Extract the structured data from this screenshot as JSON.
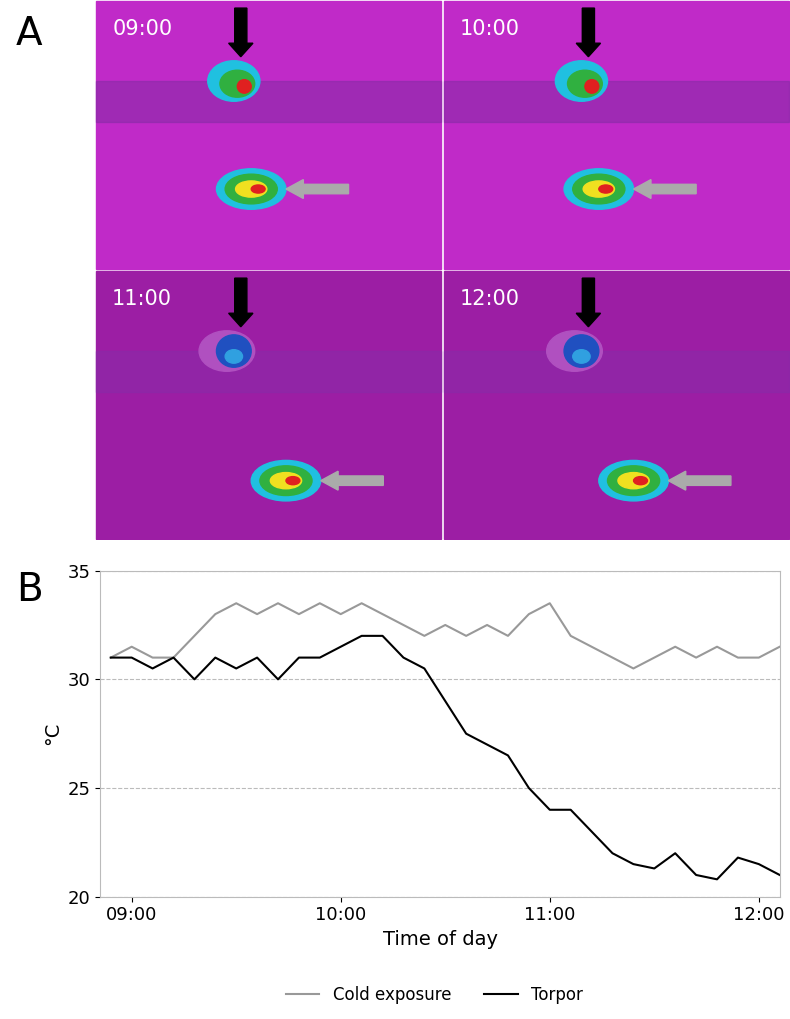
{
  "panel_labels": [
    "A",
    "B"
  ],
  "thermal_images": {
    "times": [
      "09:00",
      "10:00",
      "11:00",
      "12:00"
    ]
  },
  "chart_data": {
    "type": "line",
    "x_label": "Time of day",
    "y_label": "°C",
    "x": [
      8.9,
      9.0,
      9.1,
      9.2,
      9.3,
      9.4,
      9.5,
      9.6,
      9.7,
      9.8,
      9.9,
      10.0,
      10.1,
      10.2,
      10.3,
      10.4,
      10.5,
      10.6,
      10.7,
      10.8,
      10.9,
      11.0,
      11.1,
      11.2,
      11.3,
      11.4,
      11.5,
      11.6,
      11.7,
      11.8,
      11.9,
      12.0,
      12.1
    ],
    "series": [
      {
        "name": "Cold exposure",
        "color": "#999999",
        "values": [
          31,
          31.5,
          31,
          31,
          32,
          33,
          33.5,
          33,
          33.5,
          33,
          33.5,
          33,
          33.5,
          33,
          32.5,
          32,
          32.5,
          32,
          32.5,
          32,
          33,
          33.5,
          32,
          31.5,
          31,
          30.5,
          31,
          31.5,
          31,
          31.5,
          31,
          31,
          31.5
        ]
      },
      {
        "name": "Torpor",
        "color": "#000000",
        "values": [
          31,
          31,
          30.5,
          31,
          30,
          31,
          30.5,
          31,
          30,
          31,
          31,
          31.5,
          32,
          32,
          31,
          30.5,
          29,
          27.5,
          27,
          26.5,
          25,
          24,
          24,
          23,
          22,
          21.5,
          21.3,
          22,
          21,
          20.8,
          21.8,
          21.5,
          21
        ]
      }
    ],
    "xlim": [
      8.85,
      12.1
    ],
    "xticks": [
      {
        "value": 9,
        "label": "09:00"
      },
      {
        "value": 10,
        "label": "10:00"
      },
      {
        "value": 11,
        "label": "11:00"
      },
      {
        "value": 12,
        "label": "12:00"
      }
    ],
    "ylim": [
      20,
      35
    ],
    "yticks": [
      20,
      25,
      30,
      35
    ],
    "grid": true,
    "legend": "lower center"
  }
}
